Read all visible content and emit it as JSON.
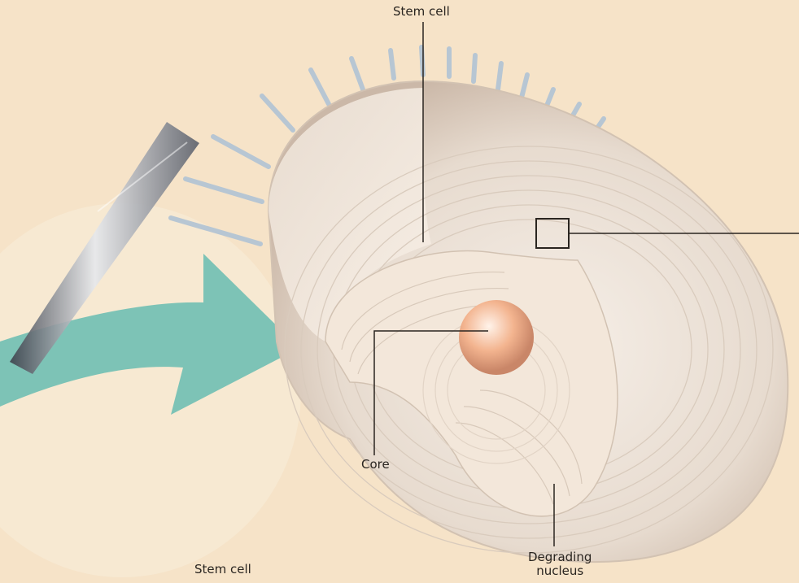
{
  "labels": {
    "stem_cell_top": "Stem cell",
    "core": "Core",
    "degrading_line1": "Degrading",
    "degrading_line2": "nucleus",
    "stem_cell_bottom": "Stem cell"
  },
  "colors": {
    "background": "#f6e3c8",
    "arrow": "#6fbfb3",
    "shell": "#efe4d8",
    "shell_shadow": "#cbb8a8",
    "core": "#f3b48f",
    "leader_line": "#2a2520",
    "pipette": "#6e7480",
    "cilia": "#b7c6d3"
  },
  "icons": {
    "arrow": "curved-arrow",
    "pipette": "pipette-needle",
    "zoom_box": "zoom-square"
  }
}
